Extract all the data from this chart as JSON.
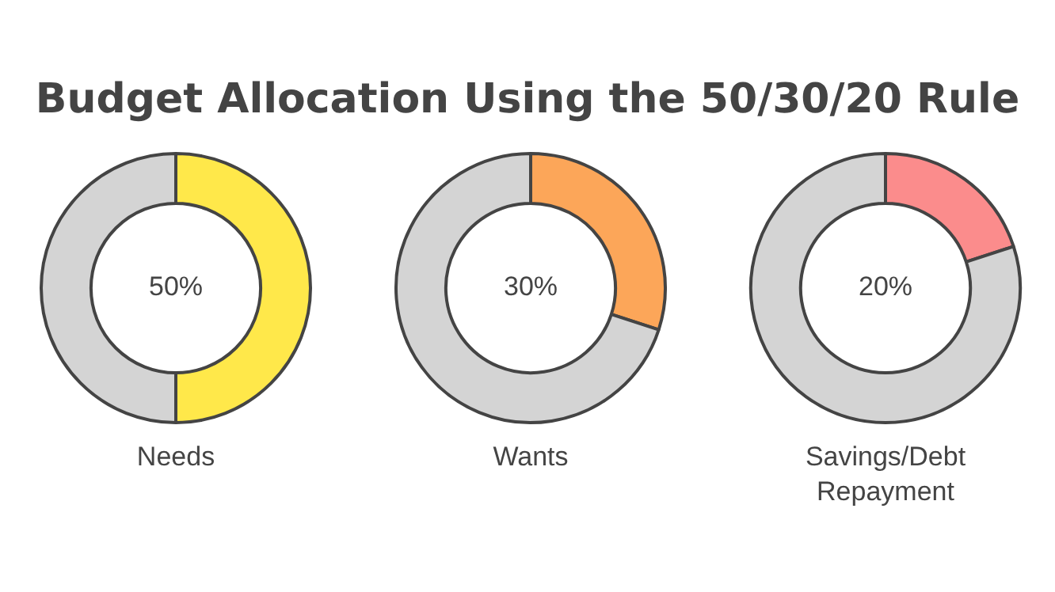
{
  "chart_data": [
    {
      "type": "donut",
      "title": "Budget Allocation Using the 50/30/20 Rule",
      "xlabel": "Needs",
      "categories": [
        null,
        null
      ],
      "values": [
        50,
        50
      ],
      "colors": [
        "#ffe84a",
        "#d4d4d4"
      ],
      "value_labels": [
        "50%",
        null
      ]
    },
    {
      "type": "donut",
      "xlabel": "Wants",
      "categories": [
        null,
        null
      ],
      "values": [
        30,
        70
      ],
      "colors": [
        "#fca659",
        "#d4d4d4"
      ],
      "value_labels": [
        "30%",
        null
      ]
    },
    {
      "type": "donut",
      "xlabel": "Savings/Debt Repayment",
      "categories": [
        null,
        null
      ],
      "values": [
        20,
        80
      ],
      "colors": [
        "#fb8c8c",
        "#d4d4d4"
      ],
      "value_labels": [
        "20%",
        null
      ]
    }
  ]
}
